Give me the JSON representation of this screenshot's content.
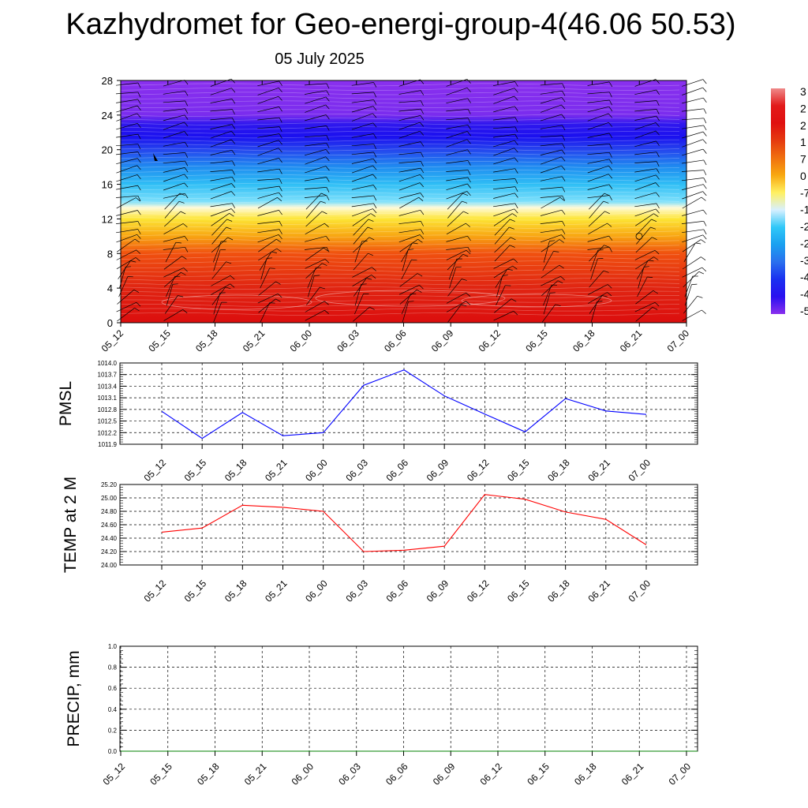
{
  "title": "Kazhydromet for Geo-energi-group-4(46.06 50.53)",
  "date": "05 July 2025",
  "time_labels": [
    "05_12",
    "05_15",
    "05_18",
    "05_21",
    "06_00",
    "06_03",
    "06_06",
    "06_09",
    "06_12",
    "06_15",
    "06_18",
    "06_21",
    "07_00"
  ],
  "chart_data": [
    {
      "type": "heatmap",
      "title": "",
      "ylim": [
        0,
        28
      ],
      "y_ticks": [
        0,
        4,
        8,
        12,
        16,
        20,
        24,
        28
      ],
      "x_ticks": [
        "05_12",
        "05_15",
        "05_18",
        "05_21",
        "06_00",
        "06_03",
        "06_06",
        "06_09",
        "06_12",
        "06_15",
        "06_18",
        "06_21",
        "07_00"
      ],
      "colorbar_labels": [
        "3",
        "2",
        "2",
        "1",
        "7",
        "0",
        "-7",
        "-1",
        "-2",
        "-2",
        "-3",
        "-4",
        "-4",
        "-5"
      ],
      "colorbar_colors": [
        "#ef8a8a",
        "#e21a1a",
        "#e01010",
        "#e53a10",
        "#f07010",
        "#f8a810",
        "#fff060",
        "#d8f0ff",
        "#30c8f8",
        "#1aa0f0",
        "#2a70ee",
        "#1a30f0",
        "#2a10f0",
        "#8a30ee"
      ],
      "gradient": [
        {
          "height": 0,
          "color": "#dc0e0e"
        },
        {
          "height": 4,
          "color": "#e02512"
        },
        {
          "height": 8,
          "color": "#f0500f"
        },
        {
          "height": 10,
          "color": "#f8a512"
        },
        {
          "height": 12,
          "color": "#fde535"
        },
        {
          "height": 13.3,
          "color": "#fffad8"
        },
        {
          "height": 14,
          "color": "#7ee0fb"
        },
        {
          "height": 16,
          "color": "#2fbef5"
        },
        {
          "height": 18,
          "color": "#1f8cf0"
        },
        {
          "height": 20,
          "color": "#2545ee"
        },
        {
          "height": 21.5,
          "color": "#1a10ef"
        },
        {
          "height": 23,
          "color": "#3018ee"
        },
        {
          "height": 24,
          "color": "#7a2cee"
        },
        {
          "height": 28,
          "color": "#8a30ee"
        }
      ]
    },
    {
      "type": "line",
      "ylabel": "PMSL",
      "ylim": [
        1011.9,
        1014.0
      ],
      "y_ticks": [
        "1011.9",
        "1012.2",
        "1012.5",
        "1012.8",
        "1013.1",
        "1013.4",
        "1013.7",
        "1014.0"
      ],
      "categories": [
        "05_12",
        "05_15",
        "05_18",
        "05_21",
        "06_00",
        "06_03",
        "06_06",
        "06_09",
        "06_12",
        "06_15",
        "06_18",
        "06_21",
        "07_00"
      ],
      "values": [
        1012.75,
        1012.05,
        1012.72,
        1012.12,
        1012.2,
        1013.42,
        1013.82,
        1013.15,
        1012.68,
        1012.22,
        1013.08,
        1012.76,
        1012.67
      ],
      "color": "#0000ff"
    },
    {
      "type": "line",
      "ylabel": "TEMP at 2 M",
      "ylim": [
        24.0,
        25.2
      ],
      "y_ticks": [
        "24.00",
        "24.20",
        "24.40",
        "24.60",
        "24.80",
        "25.00",
        "25.20"
      ],
      "categories": [
        "05_12",
        "05_15",
        "05_18",
        "05_21",
        "06_00",
        "06_03",
        "06_06",
        "06_09",
        "06_12",
        "06_15",
        "06_18",
        "06_21",
        "07_00"
      ],
      "values": [
        24.49,
        24.55,
        24.89,
        24.86,
        24.8,
        24.2,
        24.22,
        24.28,
        25.05,
        24.98,
        24.79,
        24.68,
        24.3
      ],
      "color": "#ff0000"
    },
    {
      "type": "line",
      "ylabel": "PRECIP, mm",
      "ylim": [
        0.0,
        1.0
      ],
      "y_ticks": [
        "0.0",
        "0.2",
        "0.4",
        "0.6",
        "0.8",
        "1.0"
      ],
      "categories": [
        "05_12",
        "05_15",
        "05_18",
        "05_21",
        "06_00",
        "06_03",
        "06_06",
        "06_09",
        "06_12",
        "06_15",
        "06_18",
        "06_21",
        "07_00"
      ],
      "values": [
        0,
        0,
        0,
        0,
        0,
        0,
        0,
        0,
        0,
        0,
        0,
        0,
        0
      ],
      "color": "#008000"
    }
  ]
}
